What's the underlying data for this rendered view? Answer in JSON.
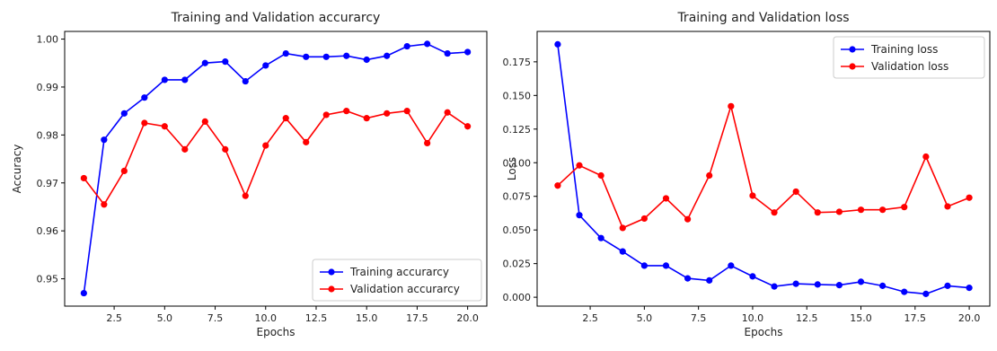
{
  "chart_data": [
    {
      "type": "line",
      "title": "Training and Validation accurarcy",
      "xlabel": "Epochs",
      "ylabel": "Accuracy",
      "xlim": [
        0.05,
        20.95
      ],
      "ylim": [
        0.9443,
        1.0016
      ],
      "xticks": [
        2.5,
        5.0,
        7.5,
        10.0,
        12.5,
        15.0,
        17.5,
        20.0
      ],
      "xtick_labels": [
        "2.5",
        "5.0",
        "7.5",
        "10.0",
        "12.5",
        "15.0",
        "17.5",
        "20.0"
      ],
      "yticks": [
        0.95,
        0.96,
        0.97,
        0.98,
        0.99,
        1.0
      ],
      "ytick_labels": [
        "0.95",
        "0.96",
        "0.97",
        "0.98",
        "0.99",
        "1.00"
      ],
      "legend": "bottom-right",
      "grid": false,
      "x": [
        1,
        2,
        3,
        4,
        5,
        6,
        7,
        8,
        9,
        10,
        11,
        12,
        13,
        14,
        15,
        16,
        17,
        18,
        19,
        20
      ],
      "series": [
        {
          "name": "Training accurarcy",
          "color": "#0000ff",
          "values": [
            0.947,
            0.979,
            0.9845,
            0.9878,
            0.9915,
            0.9915,
            0.995,
            0.9953,
            0.9912,
            0.9945,
            0.997,
            0.9963,
            0.9963,
            0.9965,
            0.9957,
            0.9965,
            0.9985,
            0.999,
            0.997,
            0.9973
          ]
        },
        {
          "name": "Validation accurarcy",
          "color": "#ff0000",
          "values": [
            0.971,
            0.9655,
            0.9725,
            0.9825,
            0.9818,
            0.977,
            0.9828,
            0.977,
            0.9673,
            0.9778,
            0.9835,
            0.9785,
            0.9842,
            0.985,
            0.9835,
            0.9845,
            0.985,
            0.9783,
            0.9847,
            0.9818
          ]
        }
      ]
    },
    {
      "type": "line",
      "title": "Training and Validation loss",
      "xlabel": "Epochs",
      "ylabel": "Loss",
      "xlim": [
        0.05,
        20.95
      ],
      "ylim": [
        -0.0066,
        0.1976
      ],
      "xticks": [
        2.5,
        5.0,
        7.5,
        10.0,
        12.5,
        15.0,
        17.5,
        20.0
      ],
      "xtick_labels": [
        "2.5",
        "5.0",
        "7.5",
        "10.0",
        "12.5",
        "15.0",
        "17.5",
        "20.0"
      ],
      "yticks": [
        0.0,
        0.025,
        0.05,
        0.075,
        0.1,
        0.125,
        0.15,
        0.175
      ],
      "ytick_labels": [
        "0.000",
        "0.025",
        "0.050",
        "0.075",
        "0.100",
        "0.125",
        "0.150",
        "0.175"
      ],
      "legend": "top-right",
      "grid": false,
      "x": [
        1,
        2,
        3,
        4,
        5,
        6,
        7,
        8,
        9,
        10,
        11,
        12,
        13,
        14,
        15,
        16,
        17,
        18,
        19,
        20
      ],
      "series": [
        {
          "name": "Training loss",
          "color": "#0000ff",
          "values": [
            0.188,
            0.061,
            0.044,
            0.034,
            0.0235,
            0.0235,
            0.014,
            0.0125,
            0.0235,
            0.0155,
            0.008,
            0.01,
            0.0095,
            0.009,
            0.0115,
            0.0085,
            0.004,
            0.0025,
            0.0085,
            0.007
          ]
        },
        {
          "name": "Validation loss",
          "color": "#ff0000",
          "values": [
            0.083,
            0.098,
            0.0905,
            0.0515,
            0.0585,
            0.0735,
            0.058,
            0.0905,
            0.142,
            0.0755,
            0.063,
            0.0785,
            0.063,
            0.0635,
            0.065,
            0.065,
            0.067,
            0.1045,
            0.0675,
            0.074
          ]
        }
      ]
    }
  ]
}
